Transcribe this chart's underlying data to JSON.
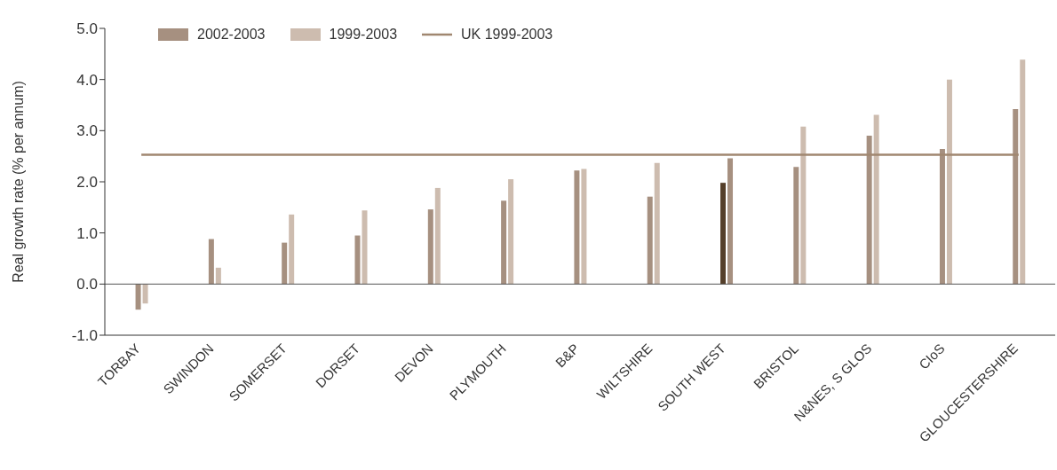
{
  "chart_data": {
    "type": "bar",
    "ylabel": "Real growth rate (% per annum)",
    "categories": [
      "TORBAY",
      "SWINDON",
      "SOMERSET",
      "DORSET",
      "DEVON",
      "PLYMOUTH",
      "B&P",
      "WILTSHIRE",
      "SOUTH WEST",
      "BRISTOL",
      "N&NES, S GLOS",
      "CIoS",
      "GLOUCESTERSHIRE"
    ],
    "series": [
      {
        "name": "2002-2003",
        "color": "#a69080",
        "colors": [
          "#a69080",
          "#a69080",
          "#a69080",
          "#a69080",
          "#a69080",
          "#a69080",
          "#a69080",
          "#a69080",
          "#553f2a",
          "#a69080",
          "#a69080",
          "#a69080",
          "#a69080"
        ],
        "values": [
          -0.5,
          0.88,
          0.81,
          0.95,
          1.46,
          1.63,
          2.22,
          1.71,
          1.98,
          2.29,
          2.9,
          2.64,
          3.42
        ]
      },
      {
        "name": "1999-2003",
        "color": "#cdbcaf",
        "colors": [
          "#cdbcaf",
          "#cdbcaf",
          "#cdbcaf",
          "#cdbcaf",
          "#cdbcaf",
          "#cdbcaf",
          "#cdbcaf",
          "#cdbcaf",
          "#a69080",
          "#cdbcaf",
          "#cdbcaf",
          "#cdbcaf",
          "#cdbcaf"
        ],
        "values": [
          -0.38,
          0.32,
          1.36,
          1.44,
          1.88,
          2.05,
          2.25,
          2.37,
          2.46,
          3.08,
          3.31,
          4.0,
          4.39
        ]
      },
      {
        "name": "UK 1999-2003",
        "type": "line",
        "color": "#a08770",
        "values": [
          2.53,
          2.53,
          2.53,
          2.53,
          2.53,
          2.53,
          2.53,
          2.53,
          2.53,
          2.53,
          2.53,
          2.53,
          2.53
        ]
      }
    ],
    "ylim": [
      -1,
      5
    ],
    "yticks": [
      {
        "value": -1,
        "label": "-1.0"
      },
      {
        "value": 0,
        "label": "0.0"
      },
      {
        "value": 1,
        "label": "1.0"
      },
      {
        "value": 2,
        "label": "2.0"
      },
      {
        "value": 3,
        "label": "3.0"
      },
      {
        "value": 4,
        "label": "4.0"
      },
      {
        "value": 5,
        "label": "5.0"
      }
    ],
    "ref_lines": [
      {
        "axis": "y",
        "value": 0,
        "color": "#555555"
      }
    ],
    "grid": false,
    "legend": "top left",
    "marker": "none"
  }
}
